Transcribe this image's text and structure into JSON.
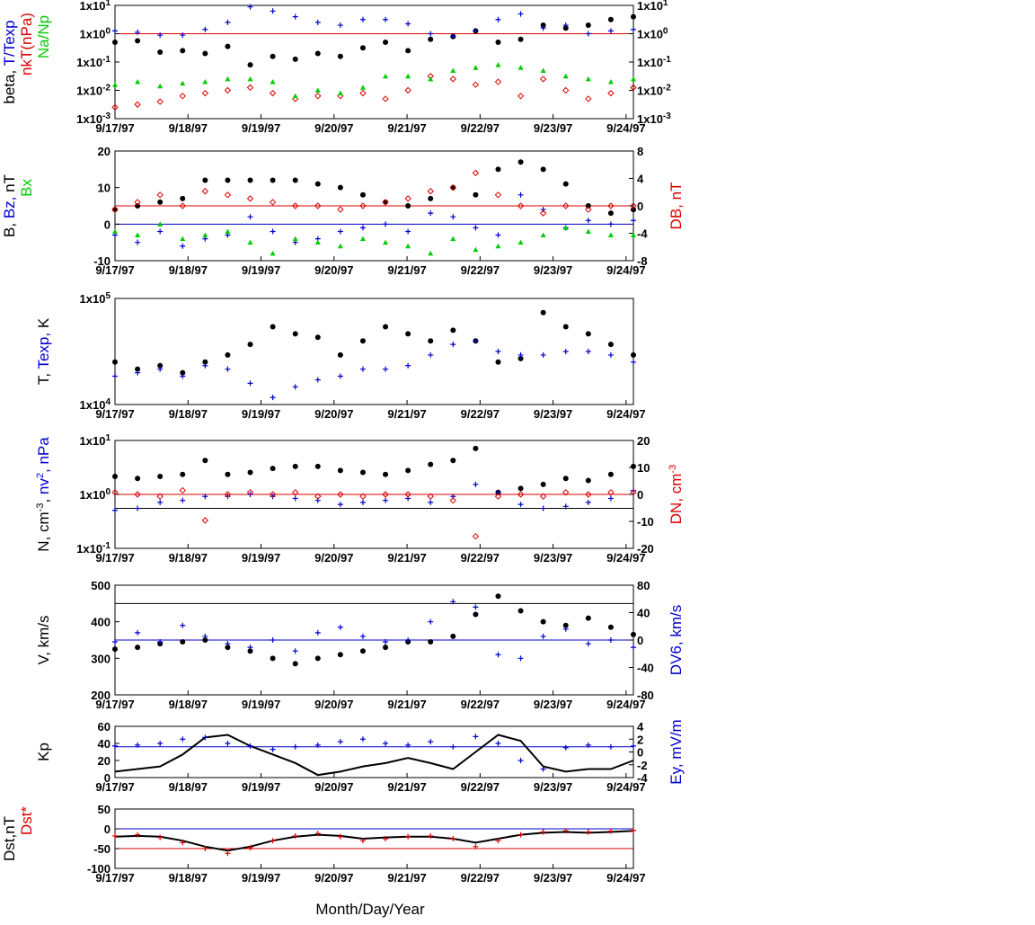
{
  "x_axis": {
    "title": "Month/Day/Year",
    "ticks": [
      "9/17/97",
      "9/18/97",
      "9/19/97",
      "9/20/97",
      "9/21/97",
      "9/22/97",
      "9/23/97",
      "9/24/97"
    ],
    "range_days": [
      0,
      7.1
    ]
  },
  "chart_data": [
    {
      "type": "scatter",
      "y_scale": "log",
      "left_label_parts": [
        {
          "text": "beta, ",
          "color": "#000000"
        },
        {
          "text": "T/Texp",
          "color": "#0000cc"
        }
      ],
      "left_label2_parts": [
        {
          "text": "nkT(nPa)",
          "color": "#dd0000"
        }
      ],
      "left_label3_parts": [
        {
          "text": "Na/Np",
          "color": "#00cc00"
        }
      ],
      "yticks": [
        "1x10-3",
        "1x10-2",
        "1x10-1",
        "1x100",
        "1x101"
      ],
      "yticks_right": [
        "1x10-3",
        "1x10-2",
        "1x10-1",
        "1x100",
        "1x101"
      ],
      "ylim": [
        -3,
        1
      ],
      "reference_lines": [
        {
          "y": 0,
          "color": "#dd0000"
        }
      ],
      "series": [
        {
          "color": "#000000",
          "marker": "dot",
          "y_log": [
            -0.3,
            -0.25,
            -0.65,
            -0.6,
            -0.7,
            -0.45,
            -1.1,
            -0.8,
            -0.9,
            -0.7,
            -0.8,
            -0.5,
            -0.3,
            -0.6,
            -0.2,
            -0.1,
            0.1,
            -0.3,
            -0.2,
            0.3,
            0.2,
            0.3,
            0.5,
            0.6
          ]
        },
        {
          "color": "#0000cc",
          "marker": "plus",
          "y_log": [
            0.1,
            0.05,
            -0.05,
            -0.05,
            0.15,
            0.4,
            0.95,
            0.8,
            0.6,
            0.4,
            0.3,
            0.5,
            0.5,
            0.35,
            0.0,
            -0.1,
            0.1,
            0.5,
            0.7,
            0.2,
            0.3,
            0.0,
            0.1,
            0.15
          ]
        },
        {
          "color": "#dd0000",
          "marker": "diamond",
          "y_log": [
            -2.6,
            -2.5,
            -2.4,
            -2.2,
            -2.1,
            -2.0,
            -1.9,
            -2.1,
            -2.3,
            -2.2,
            -2.2,
            -2.1,
            -2.3,
            -2.0,
            -1.5,
            -1.6,
            -1.8,
            -1.7,
            -2.2,
            -1.6,
            -2.0,
            -2.3,
            -2.1,
            -1.9
          ]
        },
        {
          "color": "#00cc00",
          "marker": "triangle",
          "y_log": [
            -1.8,
            -1.7,
            -1.85,
            -1.75,
            -1.7,
            -1.6,
            -1.6,
            -1.7,
            -2.2,
            -2.0,
            -2.1,
            -1.9,
            -1.5,
            -1.5,
            -1.6,
            -1.3,
            -1.2,
            -1.1,
            -1.2,
            -1.3,
            -1.5,
            -1.6,
            -1.7,
            -1.6
          ]
        }
      ]
    },
    {
      "type": "scatter",
      "left_label_parts": [
        {
          "text": "B, ",
          "color": "#000000"
        },
        {
          "text": "Bz, ",
          "color": "#0000cc"
        },
        {
          "text": "nT",
          "color": "#000000"
        }
      ],
      "left_label2_parts": [
        {
          "text": "Bx",
          "color": "#00cc00"
        }
      ],
      "right_label_parts": [
        {
          "text": "DB, nT",
          "color": "#dd0000"
        }
      ],
      "yticks": [
        "-10",
        "0",
        "10",
        "20"
      ],
      "yticks_right": [
        "-8",
        "-4",
        "0",
        "4",
        "8"
      ],
      "ylim": [
        -10,
        20
      ],
      "reference_lines": [
        {
          "y": 0,
          "color": "#0000cc"
        },
        {
          "y": 5,
          "color": "#dd0000"
        }
      ],
      "series": [
        {
          "color": "#000000",
          "marker": "dot",
          "values": [
            4,
            5,
            6,
            7,
            12,
            12,
            12,
            12,
            12,
            11,
            10,
            8,
            6,
            5,
            7,
            10,
            8,
            15,
            17,
            15,
            11,
            5,
            3,
            4
          ]
        },
        {
          "color": "#0000cc",
          "marker": "plus",
          "values": [
            -3,
            -5,
            -2,
            -6,
            -4,
            -3,
            2,
            -2,
            -5,
            -4,
            -2,
            -1,
            0,
            -2,
            3,
            2,
            -1,
            -3,
            8,
            4,
            -1,
            1,
            0,
            1
          ]
        },
        {
          "color": "#dd0000",
          "marker": "diamond",
          "values": [
            4,
            6,
            8,
            5,
            9,
            8,
            7,
            6,
            5,
            5,
            4,
            5,
            6,
            7,
            9,
            10,
            14,
            8,
            5,
            3,
            5,
            4,
            5,
            5
          ]
        },
        {
          "color": "#00cc00",
          "marker": "triangle",
          "values": [
            -2,
            -3,
            0,
            -4,
            -3,
            -2,
            -5,
            -8,
            -4,
            -5,
            -6,
            -4,
            -5,
            -6,
            -8,
            -4,
            -7,
            -6,
            -5,
            -3,
            -1,
            -2,
            -3,
            -3
          ]
        }
      ]
    },
    {
      "type": "scatter",
      "y_scale": "log",
      "left_label_parts": [
        {
          "text": "T, ",
          "color": "#000000"
        },
        {
          "text": "Texp, ",
          "color": "#0000cc"
        },
        {
          "text": "K",
          "color": "#000000"
        }
      ],
      "yticks": [
        "1x104",
        "1x105"
      ],
      "ylim": [
        4,
        5.5
      ],
      "series": [
        {
          "color": "#000000",
          "marker": "dot",
          "y_log": [
            4.6,
            4.5,
            4.55,
            4.45,
            4.6,
            4.7,
            4.85,
            5.1,
            5.0,
            4.95,
            4.7,
            4.9,
            5.1,
            5.0,
            4.9,
            5.05,
            4.9,
            4.6,
            4.65,
            5.3,
            5.1,
            5.0,
            4.85,
            4.7
          ]
        },
        {
          "color": "#0000cc",
          "marker": "plus",
          "y_log": [
            4.4,
            4.45,
            4.5,
            4.4,
            4.55,
            4.5,
            4.3,
            4.1,
            4.25,
            4.35,
            4.4,
            4.5,
            4.5,
            4.55,
            4.7,
            4.85,
            4.9,
            4.75,
            4.7,
            4.7,
            4.75,
            4.75,
            4.7,
            4.6
          ]
        }
      ]
    },
    {
      "type": "scatter",
      "y_scale": "log",
      "left_label_parts": [
        {
          "text": "N, cm",
          "color": "#000000"
        },
        {
          "text": "-3",
          "color": "#000000",
          "sup": true
        },
        {
          "text": ", ",
          "color": "#000000"
        },
        {
          "text": "nv",
          "color": "#0000cc"
        },
        {
          "text": "2",
          "color": "#0000cc",
          "sup": true
        },
        {
          "text": ", nPa",
          "color": "#0000cc"
        }
      ],
      "right_label_parts": [
        {
          "text": "DN, cm",
          "color": "#dd0000"
        },
        {
          "text": "-3",
          "color": "#dd0000",
          "sup": true
        }
      ],
      "yticks": [
        "1x10-1",
        "1x100",
        "1x101"
      ],
      "yticks_right": [
        "-20",
        "-10",
        "0",
        "10",
        "20"
      ],
      "ylim": [
        -1,
        1.7
      ],
      "reference_lines": [
        {
          "y": 0,
          "color": "#000000"
        },
        {
          "y": 0.35,
          "color": "#dd0000"
        }
      ],
      "series": [
        {
          "color": "#000000",
          "marker": "dot",
          "y_log": [
            0.8,
            0.75,
            0.8,
            0.85,
            1.2,
            0.85,
            0.9,
            1.0,
            1.05,
            1.05,
            0.95,
            0.9,
            0.85,
            0.95,
            1.1,
            1.2,
            1.5,
            0.4,
            0.5,
            0.6,
            0.75,
            0.7,
            0.85,
            1.05
          ]
        },
        {
          "color": "#0000cc",
          "marker": "plus",
          "y_log": [
            -0.05,
            0.0,
            0.15,
            0.2,
            0.3,
            0.3,
            0.35,
            0.3,
            0.25,
            0.2,
            0.1,
            0.15,
            0.2,
            0.25,
            0.15,
            0.3,
            0.6,
            0.4,
            0.1,
            0.0,
            0.05,
            0.15,
            0.25,
            0.45
          ]
        },
        {
          "color": "#dd0000",
          "marker": "diamond",
          "y_log": [
            0.4,
            0.35,
            0.3,
            0.45,
            -0.3,
            0.35,
            0.4,
            0.35,
            0.4,
            0.3,
            0.35,
            0.3,
            0.35,
            0.35,
            0.3,
            0.2,
            -0.7,
            0.3,
            0.35,
            0.3,
            0.4,
            0.35,
            0.4,
            0.4
          ]
        }
      ]
    },
    {
      "type": "scatter",
      "left_label_parts": [
        {
          "text": "V, km/s",
          "color": "#000000"
        }
      ],
      "right_label_parts": [
        {
          "text": "DV6, km/s",
          "color": "#0000cc"
        }
      ],
      "yticks": [
        "200",
        "300",
        "400",
        "500"
      ],
      "yticks_right": [
        "-80",
        "-40",
        "0",
        "40",
        "80"
      ],
      "ylim": [
        200,
        500
      ],
      "reference_lines": [
        {
          "y": 450,
          "color": "#000000"
        },
        {
          "y": 350,
          "color": "#0000cc"
        }
      ],
      "series": [
        {
          "color": "#000000",
          "marker": "dot",
          "values": [
            325,
            330,
            340,
            345,
            350,
            330,
            320,
            300,
            285,
            300,
            310,
            320,
            330,
            345,
            345,
            360,
            420,
            470,
            430,
            400,
            390,
            410,
            385,
            365
          ]
        },
        {
          "color": "#0000cc",
          "marker": "plus",
          "values": [
            345,
            370,
            345,
            390,
            360,
            340,
            330,
            350,
            320,
            370,
            385,
            360,
            345,
            350,
            400,
            455,
            440,
            310,
            300,
            360,
            380,
            340,
            350,
            330
          ]
        }
      ]
    },
    {
      "type": "line",
      "left_label_parts": [
        {
          "text": "Kp",
          "color": "#000000"
        }
      ],
      "right_label_parts": [
        {
          "text": "Ey,  mV/m",
          "color": "#0000cc"
        }
      ],
      "yticks": [
        "0",
        "20",
        "40",
        "60"
      ],
      "yticks_right": [
        "-4",
        "-2",
        "0",
        "2",
        "4"
      ],
      "ylim": [
        0,
        60
      ],
      "reference_lines": [
        {
          "y": 36,
          "color": "#0000cc"
        }
      ],
      "series": [
        {
          "color": "#000000",
          "marker": "line",
          "values": [
            7,
            10,
            13,
            27,
            47,
            50,
            37,
            27,
            17,
            3,
            7,
            13,
            17,
            23,
            17,
            10,
            30,
            50,
            43,
            13,
            7,
            10,
            10,
            20
          ]
        },
        {
          "color": "#0000cc",
          "marker": "plus",
          "values": [
            37,
            38,
            40,
            45,
            47,
            40,
            37,
            33,
            36,
            38,
            42,
            45,
            40,
            38,
            42,
            36,
            48,
            40,
            20,
            10,
            35,
            38,
            36,
            37
          ]
        }
      ]
    },
    {
      "type": "line",
      "left_label_parts": [
        {
          "text": "Dst,nT",
          "color": "#000000"
        }
      ],
      "left_label2_parts": [
        {
          "text": "Dst*",
          "color": "#dd0000"
        }
      ],
      "yticks": [
        "-100",
        "-50",
        "0",
        "50"
      ],
      "ylim": [
        -100,
        50
      ],
      "reference_lines": [
        {
          "y": 0,
          "color": "#0000cc"
        },
        {
          "y": -50,
          "color": "#dd0000"
        }
      ],
      "series": [
        {
          "color": "#000000",
          "marker": "line",
          "values": [
            -20,
            -18,
            -20,
            -30,
            -45,
            -55,
            -45,
            -30,
            -20,
            -15,
            -18,
            -25,
            -22,
            -20,
            -20,
            -25,
            -35,
            -25,
            -15,
            -10,
            -8,
            -10,
            -8,
            -5
          ]
        },
        {
          "color": "#dd0000",
          "marker": "plus",
          "values": [
            -18,
            -15,
            -22,
            -35,
            -50,
            -62,
            -48,
            -30,
            -18,
            -12,
            -20,
            -30,
            -25,
            -20,
            -18,
            -25,
            -45,
            -30,
            -15,
            -8,
            -5,
            -8,
            -6,
            -4
          ]
        }
      ]
    }
  ]
}
